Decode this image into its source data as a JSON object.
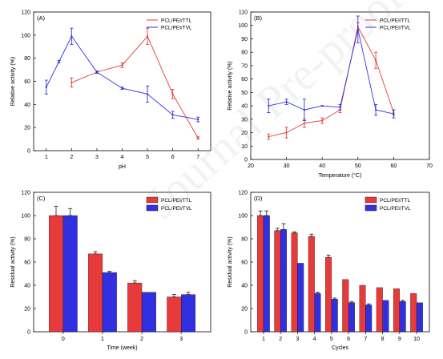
{
  "colors": {
    "red": "#e83a3a",
    "blue": "#3030e0",
    "axis": "#000000"
  },
  "watermark": "Journal Pre-proof",
  "chart_data": [
    {
      "panel": "(A)",
      "type": "line",
      "xlabel": "pH",
      "ylabel": "Relative activity (%)",
      "xlim": [
        0.5,
        7.5
      ],
      "ylim": [
        0,
        120
      ],
      "xticks": [
        1,
        2,
        3,
        4,
        5,
        6,
        7
      ],
      "yticks": [
        0,
        20,
        40,
        60,
        80,
        100,
        120
      ],
      "legend": "top-right",
      "series": [
        {
          "name": "PCL/PEI/TTL",
          "color": "#e83a3a",
          "x": [
            2,
            3,
            4,
            5,
            6,
            7
          ],
          "y": [
            59,
            68,
            74,
            99,
            49,
            11
          ],
          "err": [
            4,
            1,
            2,
            7,
            4,
            1
          ]
        },
        {
          "name": "PCL/PEI/TVL",
          "color": "#3030e0",
          "x": [
            1,
            1.5,
            2,
            3,
            4,
            5,
            6,
            7
          ],
          "y": [
            55,
            77,
            99,
            68,
            54,
            49,
            31,
            27
          ],
          "err": [
            6,
            1,
            7,
            1,
            1,
            7,
            3,
            2
          ]
        }
      ]
    },
    {
      "panel": "(B)",
      "type": "line",
      "xlabel": "Temperature (°C)",
      "ylabel": "Relative activity (%)",
      "xlim": [
        20,
        70
      ],
      "ylim": [
        0,
        110
      ],
      "xticks": [
        20,
        30,
        40,
        50,
        60,
        70
      ],
      "yticks": [
        0,
        10,
        20,
        30,
        40,
        50,
        60,
        70,
        80,
        90,
        100,
        110
      ],
      "legend": "top-right",
      "series": [
        {
          "name": "PCL/PEI/TTL",
          "color": "#e83a3a",
          "x": [
            25,
            30,
            35,
            40,
            45,
            50,
            55,
            60
          ],
          "y": [
            17,
            20,
            27,
            29,
            37,
            99,
            74,
            35
          ],
          "err": [
            2,
            4,
            3,
            2,
            2,
            3,
            6,
            2
          ]
        },
        {
          "name": "PCL/PEI/TVL",
          "color": "#3030e0",
          "x": [
            25,
            30,
            35,
            40,
            45,
            50,
            55,
            60
          ],
          "y": [
            40,
            43,
            37,
            40,
            39,
            97,
            37,
            34
          ],
          "err": [
            5,
            2,
            8,
            0,
            2,
            10,
            4,
            3
          ]
        }
      ]
    },
    {
      "panel": "(C)",
      "type": "bar",
      "xlabel": "Time (week)",
      "ylabel": "Residual activity (%)",
      "categories": [
        "0",
        "1",
        "2",
        "3"
      ],
      "ylim": [
        0,
        120
      ],
      "yticks": [
        0,
        20,
        40,
        60,
        80,
        100,
        120
      ],
      "legend": "top-right",
      "series": [
        {
          "name": "PCL/PEI/TTL",
          "color": "#e83a3a",
          "values": [
            100,
            67,
            42,
            30
          ],
          "err": [
            8,
            2,
            2,
            2
          ]
        },
        {
          "name": "PCL/PEI/TVL",
          "color": "#3030e0",
          "values": [
            100,
            51,
            34,
            32
          ],
          "err": [
            6,
            1,
            0,
            2
          ]
        }
      ]
    },
    {
      "panel": "(D)",
      "type": "bar",
      "xlabel": "Cycles",
      "ylabel": "Residual activity (%)",
      "categories": [
        "1",
        "2",
        "3",
        "4",
        "5",
        "6",
        "7",
        "8",
        "9",
        "10"
      ],
      "ylim": [
        0,
        120
      ],
      "yticks": [
        0,
        20,
        40,
        60,
        80,
        100,
        120
      ],
      "legend": "top-right",
      "series": [
        {
          "name": "PCL/PEI/TTL",
          "color": "#e83a3a",
          "values": [
            100,
            87,
            85,
            82,
            64,
            45,
            40,
            38,
            37,
            33
          ],
          "err": [
            4,
            2,
            1,
            2,
            2,
            0,
            0,
            0,
            0,
            0
          ]
        },
        {
          "name": "PCL/PEI/TVL",
          "color": "#3030e0",
          "values": [
            100,
            88,
            59,
            33,
            28,
            25,
            23,
            27,
            26,
            25
          ],
          "err": [
            4,
            5,
            0,
            1,
            1,
            1,
            1,
            0,
            1,
            0
          ]
        }
      ]
    }
  ]
}
